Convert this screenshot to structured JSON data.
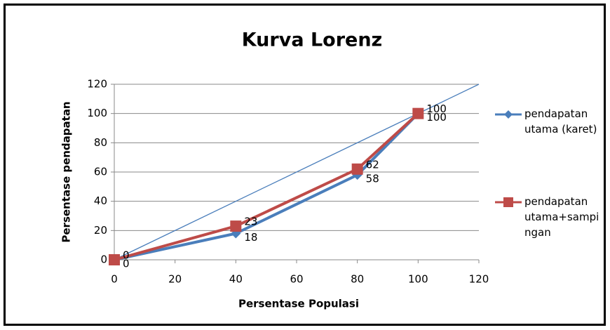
{
  "chart_data": {
    "type": "line",
    "title": "Kurva Lorenz",
    "x_label": "Persentase Populasi",
    "y_label": "Persentase pendapatan",
    "x": [
      0,
      40,
      80,
      100
    ],
    "series": [
      {
        "name": "pendapatan utama (karet)",
        "color": "#4a7ebb",
        "marker": "diamond",
        "values": [
          0,
          18,
          58,
          100
        ]
      },
      {
        "name": "pendapatan utama+sampingan",
        "color": "#be4b48",
        "marker": "square",
        "values": [
          0,
          23,
          62,
          100
        ]
      }
    ],
    "xlim": [
      0,
      120
    ],
    "xticks": [
      0,
      20,
      40,
      60,
      80,
      100,
      120
    ],
    "ylim": [
      0,
      120
    ],
    "yticks": [
      0,
      20,
      40,
      60,
      80,
      100,
      120
    ],
    "grid": true,
    "legend": "right"
  }
}
